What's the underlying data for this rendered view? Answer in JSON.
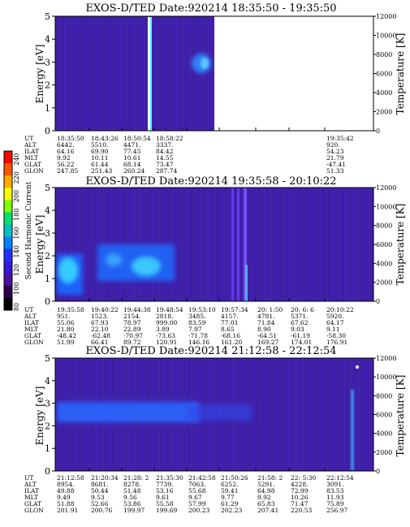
{
  "colors": {
    "background": "#3d1fa3",
    "streak": "#5a2de0",
    "text": "#000000",
    "band_low": "#2a66ff",
    "band_high": "#35c3ff"
  },
  "colorbar": {
    "label": "Second Harmonic Current",
    "ticks": [
      "240",
      "220",
      "200",
      "180",
      "160",
      "140",
      "120",
      "100",
      "80"
    ],
    "colors": [
      "#ff0000",
      "#ff5500",
      "#ffaa00",
      "#ffff00",
      "#80ff00",
      "#00e070",
      "#00c0c0",
      "#0080ff",
      "#2030ff",
      "#3a18d8",
      "#4a10a0",
      "#2a0050",
      "#000000"
    ]
  },
  "chart_data": [
    {
      "type": "heatmap",
      "title": "EXOS-D/TED   Date:920214   18:35:50 - 19:35:50",
      "ylabel": "Energy [eV]",
      "ylabel_right": "Temperature [K]",
      "ylim": [
        0,
        5
      ],
      "yticks": [
        "0",
        "1",
        "2",
        "3",
        "4",
        "5"
      ],
      "ylim_right": [
        0,
        12000
      ],
      "yticks_right": [
        "0",
        "2000",
        "4000",
        "6000",
        "8000",
        "10000",
        "12000"
      ],
      "data_end_fraction": 0.5,
      "orbit_table": {
        "row_labels": [
          "UT",
          "ALT",
          "ILAT",
          "MLT",
          "GLAT",
          "GLON"
        ],
        "columns": [
          [
            "18:35:50",
            "6442.",
            "64.16",
            "9.92",
            "56.22",
            "247.85"
          ],
          [
            "18:43:26",
            "5510.",
            "69.90",
            "10.11",
            "61.44",
            "251.43"
          ],
          [
            "18:50:54",
            "4471.",
            "77.45",
            "10.61",
            "68.14",
            "260.24"
          ],
          [
            "18:58:22",
            "3337.",
            "84.42",
            "14.55",
            "73.47",
            "287.74"
          ],
          [
            "",
            "",
            "",
            "",
            "",
            ""
          ],
          [
            "",
            "",
            "",
            "",
            "",
            ""
          ],
          [
            "",
            "",
            "",
            "",
            "",
            ""
          ],
          [
            "",
            "",
            "",
            "",
            "",
            ""
          ],
          [
            "19:35:42",
            "920.",
            "54.23",
            "21.79",
            "-47.41",
            "51.33"
          ]
        ]
      }
    },
    {
      "type": "heatmap",
      "title": "EXOS-D/TED   Date:920214   19:35:58 - 20:10:22",
      "ylabel": "Energy [eV]",
      "ylabel_right": "Temperature [K]",
      "ylim": [
        0,
        5
      ],
      "yticks": [
        "0",
        "1",
        "2",
        "3",
        "4",
        "5"
      ],
      "ylim_right": [
        0,
        12000
      ],
      "yticks_right": [
        "0",
        "2000",
        "4000",
        "6000",
        "8000",
        "10000",
        "12000"
      ],
      "data_end_fraction": 1.0,
      "orbit_table": {
        "row_labels": [
          "UT",
          "ALT",
          "ILAT",
          "MLT",
          "GLAT",
          "GLON"
        ],
        "columns": [
          [
            "19:35:58",
            "951.",
            "55.06",
            "21.80",
            "-48.42",
            "51.99"
          ],
          [
            "19:40:22",
            "1523.",
            "67.93",
            "22.10",
            "-62.48",
            "66.41"
          ],
          [
            "19:44:38",
            "2154.",
            "78.97",
            "22.89",
            "-70.97",
            "89.72"
          ],
          [
            "19:48:54",
            "2818.",
            "999.00",
            "3.89",
            "-73.63",
            "120.91"
          ],
          [
            "19:53:10",
            "3485.",
            "83.59",
            "7.97",
            "-71.78",
            "146.16"
          ],
          [
            "19:57:34",
            "4157.",
            "77.01",
            "8.65",
            "-68.16",
            "161.20"
          ],
          [
            "20: 1:50",
            "4781.",
            "71.84",
            "8.90",
            "-64.51",
            "169.27"
          ],
          [
            "20: 6: 6",
            "5371.",
            "67.62",
            "9.03",
            "-61.19",
            "174.01"
          ],
          [
            "20:10:22",
            "5920.",
            "64.17",
            "9.11",
            "-58.30",
            "176.91"
          ]
        ]
      }
    },
    {
      "type": "heatmap",
      "title": "EXOS-D/TED   Date:920214   21:12:58 - 22:12:54",
      "ylabel": "Energy [eV]",
      "ylabel_right": "Temperature [K]",
      "ylim": [
        0,
        5
      ],
      "yticks": [
        "0",
        "1",
        "2",
        "3",
        "4",
        "5"
      ],
      "ylim_right": [
        0,
        12000
      ],
      "yticks_right": [
        "0",
        "2000",
        "4000",
        "6000",
        "8000",
        "10000",
        "12000"
      ],
      "data_end_fraction": 1.0,
      "orbit_table": {
        "row_labels": [
          "UT",
          "ALT",
          "ILAT",
          "MLT",
          "GLAT",
          "GLON"
        ],
        "columns": [
          [
            "21:12:58",
            "8954.",
            "49.88",
            "9.49",
            "51.88",
            "201.91"
          ],
          [
            "21:20:34",
            "8681.",
            "50.44",
            "9.53",
            "52.66",
            "200.76"
          ],
          [
            "21:28: 2",
            "8278.",
            "51.48",
            "9.56",
            "53.86",
            "199.97"
          ],
          [
            "21:35:30",
            "7739.",
            "53.16",
            "9.61",
            "55.58",
            "199.69"
          ],
          [
            "21:42:58",
            "7063.",
            "55.68",
            "9.67",
            "57.99",
            "200.23"
          ],
          [
            "21:50:26",
            "6252.",
            "59.41",
            "9.77",
            "61.29",
            "202.23"
          ],
          [
            "21:58: 2",
            "5291.",
            "64.98",
            "9.92",
            "65.83",
            "207.41"
          ],
          [
            "22: 5:30",
            "4228.",
            "72.99",
            "10.26",
            "71.47",
            "220.53"
          ],
          [
            "22:12:54",
            "3091.",
            "83.53",
            "11.93",
            "75.89",
            "256.97"
          ]
        ]
      }
    }
  ]
}
